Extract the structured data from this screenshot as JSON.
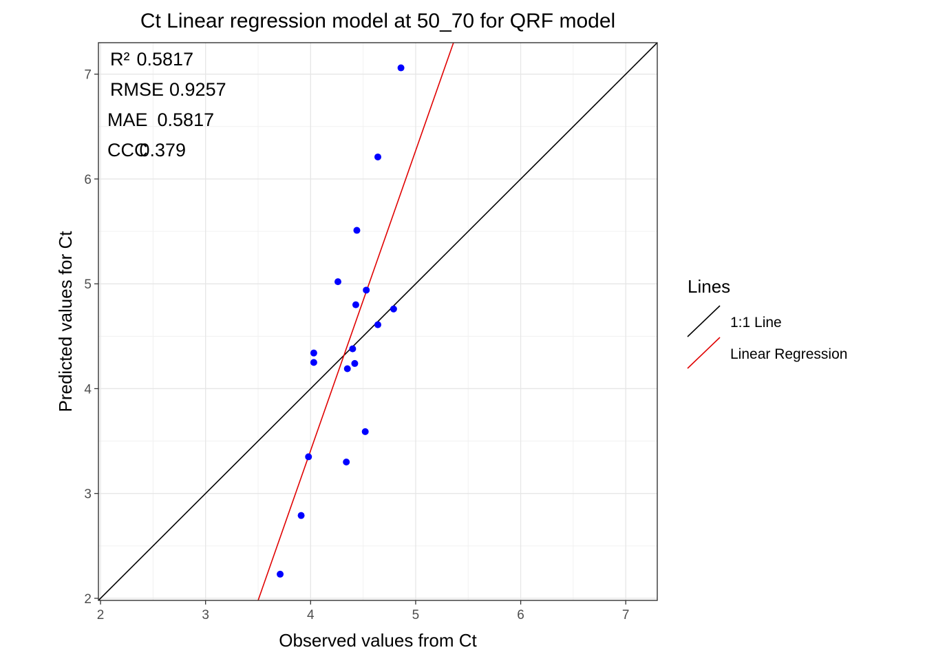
{
  "chart_data": {
    "type": "scatter",
    "title": "Ct  Linear regression model at  50_70  for  QRF  model",
    "xlabel": "Observed values from Ct",
    "ylabel": "Predicted values for Ct",
    "xlim": [
      1.98,
      7.3
    ],
    "ylim": [
      1.98,
      7.3
    ],
    "x_ticks": [
      2,
      3,
      4,
      5,
      6,
      7
    ],
    "y_ticks": [
      2,
      3,
      4,
      5,
      6,
      7
    ],
    "x_tick_labels": [
      "2",
      "3",
      "4",
      "5",
      "6",
      "7"
    ],
    "y_tick_labels": [
      "2",
      "3",
      "4",
      "5",
      "6",
      "7"
    ],
    "grid": true,
    "points": [
      {
        "x": 4.86,
        "y": 7.06
      },
      {
        "x": 4.64,
        "y": 6.21
      },
      {
        "x": 4.44,
        "y": 5.51
      },
      {
        "x": 4.26,
        "y": 5.02
      },
      {
        "x": 4.53,
        "y": 4.94
      },
      {
        "x": 4.43,
        "y": 4.8
      },
      {
        "x": 4.79,
        "y": 4.76
      },
      {
        "x": 4.64,
        "y": 4.61
      },
      {
        "x": 4.03,
        "y": 4.34
      },
      {
        "x": 4.4,
        "y": 4.38
      },
      {
        "x": 4.03,
        "y": 4.25
      },
      {
        "x": 4.42,
        "y": 4.24
      },
      {
        "x": 4.35,
        "y": 4.19
      },
      {
        "x": 4.52,
        "y": 3.59
      },
      {
        "x": 3.98,
        "y": 3.35
      },
      {
        "x": 4.34,
        "y": 3.3
      },
      {
        "x": 3.91,
        "y": 2.79
      },
      {
        "x": 3.71,
        "y": 2.23
      }
    ],
    "point_color": "#0000ff",
    "lines": [
      {
        "name": "1:1 Line",
        "color": "#000000",
        "from": [
          1.98,
          1.98
        ],
        "to": [
          7.3,
          7.3
        ]
      },
      {
        "name": "Linear Regression",
        "color": "#e00000",
        "from": [
          3.5,
          1.98
        ],
        "to": [
          5.36,
          7.3
        ]
      }
    ],
    "legend": {
      "title": "Lines",
      "placement": "right",
      "entries": [
        "1:1 Line",
        "Linear Regression"
      ]
    },
    "metrics": [
      {
        "label": "R²",
        "value": "0.5817"
      },
      {
        "label": "RMSE",
        "value": "0.9257"
      },
      {
        "label": "MAE",
        "value": "0.5817"
      },
      {
        "label": "CCC",
        "value": "0.379"
      }
    ]
  }
}
